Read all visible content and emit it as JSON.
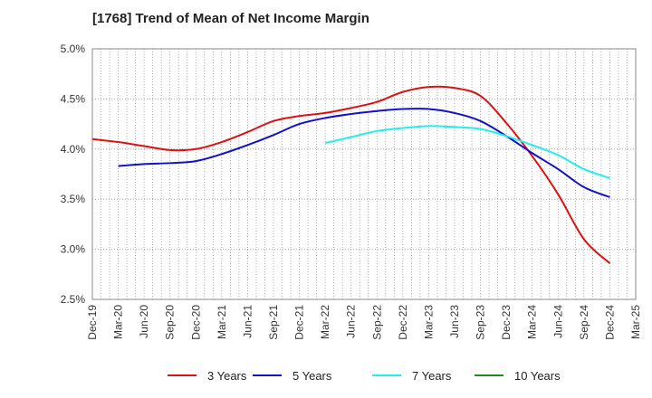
{
  "chart_data": {
    "type": "line",
    "title": "[1768]  Trend of Mean of Net Income Margin",
    "xlabel": "",
    "ylabel": "",
    "ylim": [
      2.5,
      5.0
    ],
    "yticks": [
      "2.5%",
      "3.0%",
      "3.5%",
      "4.0%",
      "4.5%",
      "5.0%"
    ],
    "ytick_values": [
      2.5,
      3.0,
      3.5,
      4.0,
      4.5,
      5.0
    ],
    "x": [
      "Dec-19",
      "Mar-20",
      "Jun-20",
      "Sep-20",
      "Dec-20",
      "Mar-21",
      "Jun-21",
      "Sep-21",
      "Dec-21",
      "Mar-22",
      "Jun-22",
      "Sep-22",
      "Dec-22",
      "Mar-23",
      "Jun-23",
      "Sep-23",
      "Dec-23",
      "Mar-24",
      "Jun-24",
      "Sep-24",
      "Dec-24",
      "Mar-25"
    ],
    "grid": true,
    "legend_position": "bottom",
    "series": [
      {
        "name": "3 Years",
        "color": "#dd1111",
        "values": [
          4.1,
          4.07,
          4.03,
          3.99,
          4.0,
          4.07,
          4.17,
          4.28,
          4.33,
          4.36,
          4.41,
          4.47,
          4.57,
          4.62,
          4.61,
          4.53,
          4.26,
          3.93,
          3.55,
          3.1,
          2.86,
          null
        ]
      },
      {
        "name": "5 Years",
        "color": "#1111cc",
        "values": [
          null,
          3.83,
          3.85,
          3.86,
          3.88,
          3.95,
          4.04,
          4.14,
          4.25,
          4.31,
          4.35,
          4.38,
          4.4,
          4.4,
          4.36,
          4.28,
          4.13,
          3.96,
          3.8,
          3.62,
          3.52,
          null
        ]
      },
      {
        "name": "7 Years",
        "color": "#22eeee",
        "values": [
          null,
          null,
          null,
          null,
          null,
          null,
          null,
          null,
          null,
          4.06,
          4.12,
          4.18,
          4.21,
          4.23,
          4.22,
          4.2,
          4.13,
          4.04,
          3.94,
          3.8,
          3.71,
          null
        ]
      },
      {
        "name": "10 Years",
        "color": "#228822",
        "values": [
          null,
          null,
          null,
          null,
          null,
          null,
          null,
          null,
          null,
          null,
          null,
          null,
          null,
          null,
          null,
          null,
          null,
          null,
          null,
          null,
          null,
          null
        ]
      }
    ]
  }
}
